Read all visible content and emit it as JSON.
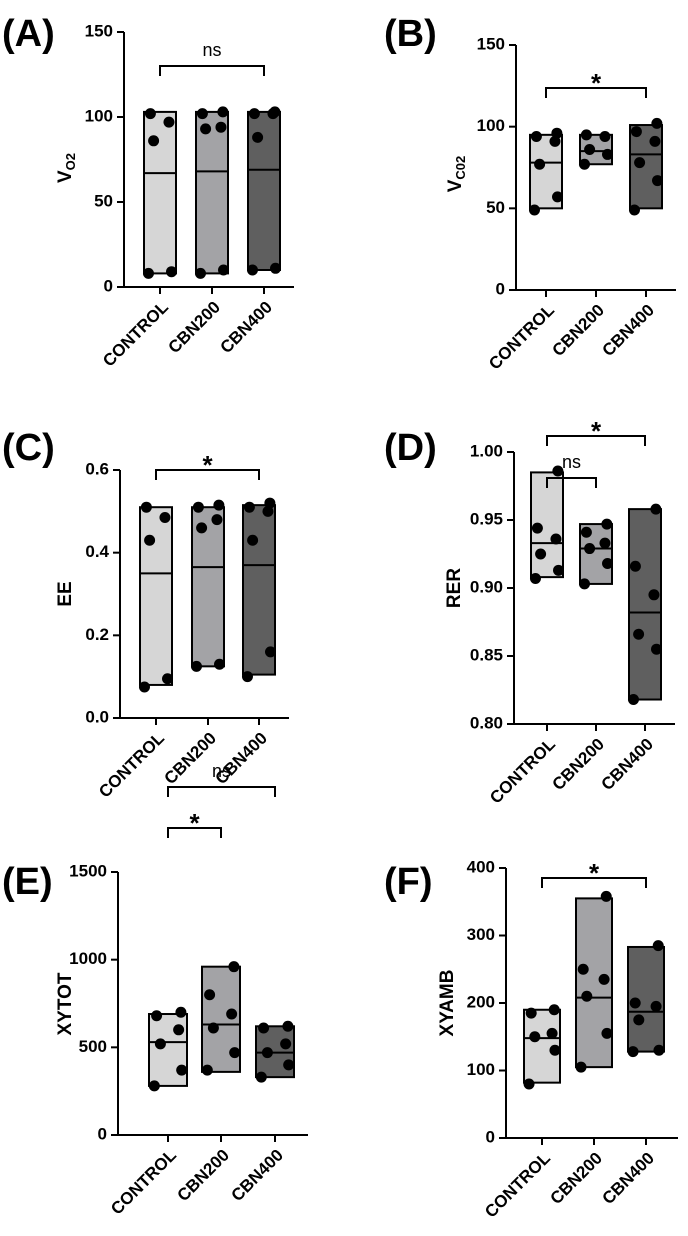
{
  "chart_data": [
    {
      "panel": "(A)",
      "type": "floating-bar",
      "ylabel": "V",
      "ylabel_sub": "O2",
      "categories": [
        "CONTROL",
        "CBN200",
        "CBN400"
      ],
      "yticks": [
        0,
        50,
        100,
        150
      ],
      "ylim": [
        0,
        150
      ],
      "colors": [
        "#d6d6d6",
        "#a3a3a6",
        "#5f5f5f"
      ],
      "series": [
        {
          "name": "CONTROL",
          "min": 8,
          "max": 103,
          "mean": 67,
          "points": [
            8,
            9,
            86,
            97,
            102
          ]
        },
        {
          "name": "CBN200",
          "min": 8,
          "max": 103,
          "mean": 68,
          "points": [
            8,
            10,
            93,
            94,
            102,
            103
          ]
        },
        {
          "name": "CBN400",
          "min": 10,
          "max": 103,
          "mean": 69,
          "points": [
            10,
            11,
            88,
            102,
            102,
            103
          ]
        }
      ],
      "significance": [
        {
          "from": 0,
          "to": 2,
          "label": "ns",
          "level": 0
        }
      ]
    },
    {
      "panel": "(B)",
      "type": "floating-bar",
      "ylabel": "V",
      "ylabel_sub": "C02",
      "categories": [
        "CONTROL",
        "CBN200",
        "CBN400"
      ],
      "yticks": [
        0,
        50,
        100,
        150
      ],
      "ylim": [
        0,
        150
      ],
      "colors": [
        "#d6d6d6",
        "#a3a3a6",
        "#5f5f5f"
      ],
      "series": [
        {
          "name": "CONTROL",
          "min": 50,
          "max": 95,
          "mean": 78,
          "points": [
            49,
            57,
            77,
            91,
            94,
            96
          ]
        },
        {
          "name": "CBN200",
          "min": 77,
          "max": 95,
          "mean": 85,
          "points": [
            77,
            83,
            86,
            94,
            95
          ]
        },
        {
          "name": "CBN400",
          "min": 50,
          "max": 101,
          "mean": 83,
          "points": [
            49,
            67,
            78,
            91,
            97,
            102
          ]
        }
      ],
      "significance": [
        {
          "from": 0,
          "to": 2,
          "label": "*",
          "level": 0
        }
      ]
    },
    {
      "panel": "(C)",
      "type": "floating-bar",
      "ylabel": "EE",
      "categories": [
        "CONTROL",
        "CBN200",
        "CBN400"
      ],
      "yticks": [
        0.0,
        0.2,
        0.4,
        0.6
      ],
      "ytick_labels": [
        "0.0",
        "0.2",
        "0.4",
        "0.6"
      ],
      "ylim": [
        0,
        0.6
      ],
      "colors": [
        "#d6d6d6",
        "#a3a3a6",
        "#5f5f5f"
      ],
      "series": [
        {
          "name": "CONTROL",
          "min": 0.08,
          "max": 0.51,
          "mean": 0.35,
          "points": [
            0.075,
            0.095,
            0.43,
            0.485,
            0.51
          ]
        },
        {
          "name": "CBN200",
          "min": 0.125,
          "max": 0.51,
          "mean": 0.365,
          "points": [
            0.125,
            0.13,
            0.46,
            0.48,
            0.51,
            0.515
          ]
        },
        {
          "name": "CBN400",
          "min": 0.105,
          "max": 0.515,
          "mean": 0.37,
          "points": [
            0.1,
            0.16,
            0.43,
            0.5,
            0.51,
            0.52
          ]
        }
      ],
      "significance": [
        {
          "from": 0,
          "to": 2,
          "label": "*",
          "level": 0
        }
      ]
    },
    {
      "panel": "(D)",
      "type": "floating-bar",
      "ylabel": "RER",
      "categories": [
        "CONTROL",
        "CBN200",
        "CBN400"
      ],
      "yticks": [
        0.8,
        0.85,
        0.9,
        0.95,
        1.0
      ],
      "ytick_labels": [
        "0.80",
        "0.85",
        "0.90",
        "0.95",
        "1.00"
      ],
      "ylim": [
        0.8,
        1.0
      ],
      "colors": [
        "#d6d6d6",
        "#a3a3a6",
        "#5f5f5f"
      ],
      "series": [
        {
          "name": "CONTROL",
          "min": 0.908,
          "max": 0.985,
          "mean": 0.933,
          "points": [
            0.907,
            0.913,
            0.925,
            0.936,
            0.944,
            0.986
          ]
        },
        {
          "name": "CBN200",
          "min": 0.903,
          "max": 0.947,
          "mean": 0.929,
          "points": [
            0.903,
            0.918,
            0.929,
            0.933,
            0.941,
            0.947
          ]
        },
        {
          "name": "CBN400",
          "min": 0.818,
          "max": 0.958,
          "mean": 0.882,
          "points": [
            0.818,
            0.855,
            0.866,
            0.895,
            0.916,
            0.958
          ]
        }
      ],
      "significance": [
        {
          "from": 0,
          "to": 1,
          "label": "ns",
          "level": 0
        },
        {
          "from": 0,
          "to": 2,
          "label": "*",
          "level": 1
        }
      ]
    },
    {
      "panel": "(E)",
      "type": "floating-bar",
      "ylabel": "XYTOT",
      "categories": [
        "CONTROL",
        "CBN200",
        "CBN400"
      ],
      "yticks": [
        0,
        500,
        1000,
        1500
      ],
      "ylim": [
        0,
        1500
      ],
      "colors": [
        "#d6d6d6",
        "#a3a3a6",
        "#5f5f5f"
      ],
      "series": [
        {
          "name": "CONTROL",
          "min": 280,
          "max": 690,
          "mean": 530,
          "points": [
            280,
            370,
            520,
            600,
            680,
            700
          ]
        },
        {
          "name": "CBN200",
          "min": 360,
          "max": 960,
          "mean": 630,
          "points": [
            370,
            470,
            610,
            690,
            800,
            960
          ]
        },
        {
          "name": "CBN400",
          "min": 330,
          "max": 620,
          "mean": 470,
          "points": [
            330,
            400,
            470,
            520,
            610,
            620
          ]
        }
      ],
      "significance": [
        {
          "from": 0,
          "to": 1,
          "label": "*",
          "level": 0
        },
        {
          "from": 0,
          "to": 2,
          "label": "ns",
          "level": 1
        }
      ]
    },
    {
      "panel": "(F)",
      "type": "floating-bar",
      "ylabel": "XYAMB",
      "categories": [
        "CONTROL",
        "CBN200",
        "CBN400"
      ],
      "yticks": [
        0,
        100,
        200,
        300,
        400
      ],
      "ylim": [
        0,
        400
      ],
      "colors": [
        "#d6d6d6",
        "#a3a3a6",
        "#5f5f5f"
      ],
      "series": [
        {
          "name": "CONTROL",
          "min": 82,
          "max": 190,
          "mean": 148,
          "points": [
            80,
            130,
            150,
            155,
            185,
            190
          ]
        },
        {
          "name": "CBN200",
          "min": 105,
          "max": 355,
          "mean": 208,
          "points": [
            105,
            155,
            210,
            235,
            250,
            358
          ]
        },
        {
          "name": "CBN400",
          "min": 128,
          "max": 283,
          "mean": 187,
          "points": [
            128,
            130,
            175,
            195,
            200,
            285
          ]
        }
      ],
      "significance": [
        {
          "from": 0,
          "to": 2,
          "label": "*",
          "level": 0
        }
      ]
    }
  ]
}
